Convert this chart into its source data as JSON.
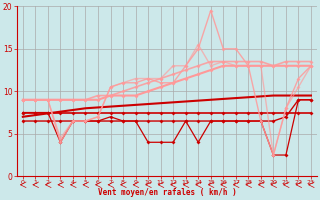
{
  "bg_color": "#cce8ea",
  "grid_color": "#aaaaaa",
  "xlabel": "Vent moyen/en rafales ( km/h )",
  "xlabel_color": "#cc0000",
  "tick_color": "#cc0000",
  "xlim": [
    -0.5,
    23.5
  ],
  "ylim": [
    0,
    20
  ],
  "yticks": [
    0,
    5,
    10,
    15,
    20
  ],
  "xticks": [
    0,
    1,
    2,
    3,
    4,
    5,
    6,
    7,
    8,
    9,
    10,
    11,
    12,
    13,
    14,
    15,
    16,
    17,
    18,
    19,
    20,
    21,
    22,
    23
  ],
  "lines": [
    {
      "x": [
        0,
        1,
        2,
        3,
        4,
        5,
        6,
        7,
        8,
        9,
        10,
        11,
        12,
        13,
        14,
        15,
        16,
        17,
        18,
        19,
        20,
        21,
        22,
        23
      ],
      "y": [
        7.5,
        7.5,
        7.5,
        7.5,
        7.5,
        7.5,
        7.5,
        7.5,
        7.5,
        7.5,
        7.5,
        7.5,
        7.5,
        7.5,
        7.5,
        7.5,
        7.5,
        7.5,
        7.5,
        7.5,
        7.5,
        7.5,
        7.5,
        7.5
      ],
      "color": "#cc0000",
      "lw": 1.2,
      "marker": "D",
      "ms": 2.0,
      "alpha": 1.0
    },
    {
      "x": [
        0,
        1,
        2,
        3,
        4,
        5,
        6,
        7,
        8,
        9,
        10,
        11,
        12,
        13,
        14,
        15,
        16,
        17,
        18,
        19,
        20,
        21,
        22,
        23
      ],
      "y": [
        6.5,
        6.5,
        6.5,
        6.5,
        6.5,
        6.5,
        6.5,
        6.5,
        6.5,
        6.5,
        6.5,
        6.5,
        6.5,
        6.5,
        6.5,
        6.5,
        6.5,
        6.5,
        6.5,
        6.5,
        6.5,
        7.0,
        9.0,
        9.0
      ],
      "color": "#cc0000",
      "lw": 1.0,
      "marker": "D",
      "ms": 2.0,
      "alpha": 1.0
    },
    {
      "x": [
        0,
        1,
        2,
        3,
        4,
        5,
        6,
        7,
        8,
        9,
        10,
        11,
        12,
        13,
        14,
        15,
        16,
        17,
        18,
        19,
        20,
        21,
        22,
        23
      ],
      "y": [
        7.0,
        7.2,
        7.4,
        7.6,
        7.8,
        8.0,
        8.1,
        8.2,
        8.3,
        8.4,
        8.5,
        8.6,
        8.7,
        8.8,
        8.9,
        9.0,
        9.1,
        9.2,
        9.3,
        9.4,
        9.5,
        9.5,
        9.5,
        9.5
      ],
      "color": "#cc0000",
      "lw": 1.5,
      "marker": null,
      "ms": 0,
      "alpha": 1.0
    },
    {
      "x": [
        0,
        1,
        2,
        3,
        4,
        5,
        6,
        7,
        8,
        9,
        10,
        11,
        12,
        13,
        14,
        15,
        16,
        17,
        18,
        19,
        20,
        21,
        22,
        23
      ],
      "y": [
        7.5,
        7.5,
        7.5,
        4.0,
        6.5,
        6.5,
        6.5,
        7.0,
        6.5,
        6.5,
        4.0,
        4.0,
        4.0,
        6.5,
        4.0,
        6.5,
        6.5,
        6.5,
        6.5,
        6.5,
        2.5,
        2.5,
        9.0,
        9.0
      ],
      "color": "#cc0000",
      "lw": 0.9,
      "marker": "D",
      "ms": 2.0,
      "alpha": 1.0
    },
    {
      "x": [
        0,
        1,
        2,
        3,
        4,
        5,
        6,
        7,
        8,
        9,
        10,
        11,
        12,
        13,
        14,
        15,
        16,
        17,
        18,
        19,
        20,
        21,
        22,
        23
      ],
      "y": [
        9.0,
        9.0,
        9.0,
        9.0,
        9.0,
        9.0,
        9.0,
        9.5,
        9.5,
        9.5,
        10.0,
        10.5,
        11.0,
        11.5,
        12.0,
        12.5,
        13.0,
        13.0,
        13.0,
        13.0,
        13.0,
        13.0,
        13.0,
        13.0
      ],
      "color": "#ff9999",
      "lw": 1.5,
      "marker": "D",
      "ms": 2.0,
      "alpha": 1.0
    },
    {
      "x": [
        0,
        1,
        2,
        3,
        4,
        5,
        6,
        7,
        8,
        9,
        10,
        11,
        12,
        13,
        14,
        15,
        16,
        17,
        18,
        19,
        20,
        21,
        22,
        23
      ],
      "y": [
        9.0,
        9.0,
        9.0,
        9.0,
        9.0,
        9.0,
        9.5,
        9.5,
        10.0,
        10.5,
        11.0,
        11.5,
        12.0,
        12.5,
        13.0,
        13.5,
        13.5,
        13.5,
        13.5,
        13.5,
        13.0,
        13.5,
        13.5,
        13.5
      ],
      "color": "#ff9999",
      "lw": 1.2,
      "marker": "D",
      "ms": 2.0,
      "alpha": 0.85
    },
    {
      "x": [
        0,
        1,
        2,
        3,
        4,
        5,
        6,
        7,
        8,
        9,
        10,
        11,
        12,
        13,
        14,
        15,
        16,
        17,
        18,
        19,
        20,
        21,
        22,
        23
      ],
      "y": [
        9.0,
        9.0,
        9.0,
        4.0,
        6.5,
        6.5,
        7.0,
        10.5,
        11.0,
        11.0,
        11.5,
        11.0,
        11.0,
        13.0,
        15.0,
        19.5,
        15.0,
        15.0,
        13.0,
        6.5,
        2.5,
        8.0,
        11.5,
        13.0
      ],
      "color": "#ff9999",
      "lw": 1.0,
      "marker": "D",
      "ms": 2.0,
      "alpha": 0.85
    },
    {
      "x": [
        0,
        1,
        2,
        3,
        4,
        5,
        6,
        7,
        8,
        9,
        10,
        11,
        12,
        13,
        14,
        15,
        16,
        17,
        18,
        19,
        20,
        21,
        22,
        23
      ],
      "y": [
        9.0,
        9.0,
        9.0,
        4.5,
        6.5,
        6.5,
        7.0,
        10.5,
        11.0,
        11.5,
        11.5,
        11.5,
        13.0,
        13.0,
        15.5,
        13.0,
        13.5,
        13.0,
        13.0,
        13.0,
        2.5,
        8.0,
        10.5,
        13.0
      ],
      "color": "#ff9999",
      "lw": 1.0,
      "marker": "D",
      "ms": 2.0,
      "alpha": 0.65
    }
  ]
}
